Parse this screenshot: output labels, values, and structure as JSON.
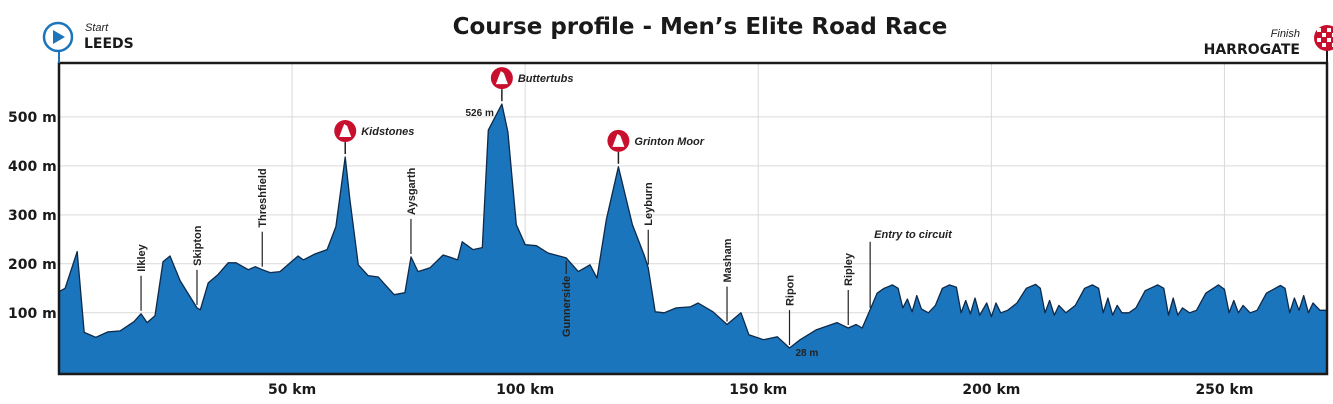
{
  "header": {
    "title": "Course profile - Men’s Elite Road Race",
    "start_caption": "Start",
    "start_city": "LEEDS",
    "finish_caption": "Finish",
    "finish_city": "HARROGATE"
  },
  "colors": {
    "profile_fill": "#1b75bc",
    "profile_outline": "#0d2a4a",
    "climb_marker": "#c8102e",
    "start_icon": "#1b75bc",
    "grid": "#d9d9d9"
  },
  "chart_data": {
    "type": "area",
    "title": "Course profile - Men’s Elite Road Race",
    "xlabel": "",
    "ylabel": "",
    "xlim": [
      0,
      272
    ],
    "ylim": [
      -25,
      610
    ],
    "grid": true,
    "x_ticks": [
      {
        "value": 50,
        "label": "50 km"
      },
      {
        "value": 100,
        "label": "100 km"
      },
      {
        "value": 150,
        "label": "150 km"
      },
      {
        "value": 200,
        "label": "200 km"
      },
      {
        "value": 250,
        "label": "250 km"
      }
    ],
    "y_ticks": [
      {
        "value": 100,
        "label": "100 m"
      },
      {
        "value": 200,
        "label": "200 m"
      },
      {
        "value": 300,
        "label": "300 m"
      },
      {
        "value": 400,
        "label": "400 m"
      },
      {
        "value": 500,
        "label": "500 m"
      }
    ],
    "profile": [
      [
        0,
        143
      ],
      [
        1.3,
        150
      ],
      [
        3.9,
        225
      ],
      [
        5.4,
        60
      ],
      [
        7.9,
        50
      ],
      [
        10.5,
        61
      ],
      [
        13.1,
        63
      ],
      [
        16.1,
        82
      ],
      [
        17.6,
        98
      ],
      [
        18.9,
        80
      ],
      [
        20.6,
        94
      ],
      [
        22.3,
        204
      ],
      [
        23.8,
        216
      ],
      [
        26,
        165
      ],
      [
        29.6,
        110
      ],
      [
        30.3,
        106
      ],
      [
        32,
        161
      ],
      [
        34.1,
        178
      ],
      [
        36.3,
        202
      ],
      [
        38,
        202
      ],
      [
        40.6,
        188
      ],
      [
        42.1,
        194
      ],
      [
        43.6,
        188
      ],
      [
        45.3,
        182
      ],
      [
        47.4,
        184
      ],
      [
        49.6,
        202
      ],
      [
        51.3,
        216
      ],
      [
        52.4,
        208
      ],
      [
        54.9,
        220
      ],
      [
        57.5,
        229
      ],
      [
        59.4,
        276
      ],
      [
        61.4,
        418
      ],
      [
        62.4,
        331
      ],
      [
        64.2,
        198
      ],
      [
        66.3,
        176
      ],
      [
        68.5,
        173
      ],
      [
        70,
        157
      ],
      [
        71.9,
        137
      ],
      [
        74.2,
        141
      ],
      [
        75.5,
        214
      ],
      [
        77,
        184
      ],
      [
        79.6,
        192
      ],
      [
        82.4,
        218
      ],
      [
        83.7,
        214
      ],
      [
        85.5,
        208
      ],
      [
        86.5,
        245
      ],
      [
        88.8,
        229
      ],
      [
        90.8,
        233
      ],
      [
        92.1,
        473
      ],
      [
        95,
        526
      ],
      [
        96.3,
        469
      ],
      [
        98.1,
        280
      ],
      [
        100,
        239
      ],
      [
        102.4,
        237
      ],
      [
        104.9,
        222
      ],
      [
        108.8,
        212
      ],
      [
        111.4,
        184
      ],
      [
        113.9,
        198
      ],
      [
        115.4,
        171
      ],
      [
        117.4,
        290
      ],
      [
        120,
        398
      ],
      [
        123,
        280
      ],
      [
        125.5,
        218
      ],
      [
        126.4,
        192
      ],
      [
        127.9,
        102
      ],
      [
        129.8,
        100
      ],
      [
        132.4,
        110
      ],
      [
        135.4,
        112
      ],
      [
        137.1,
        120
      ],
      [
        140.3,
        102
      ],
      [
        143.3,
        76
      ],
      [
        146.3,
        100
      ],
      [
        148,
        55
      ],
      [
        151.1,
        45
      ],
      [
        154.1,
        51
      ],
      [
        156.7,
        28
      ],
      [
        159,
        45
      ],
      [
        162.4,
        65
      ],
      [
        166.9,
        80
      ],
      [
        169.3,
        69
      ],
      [
        171,
        76
      ],
      [
        172.3,
        69
      ],
      [
        174,
        106
      ],
      [
        175.5,
        140
      ],
      [
        177,
        150
      ],
      [
        178.8,
        157
      ],
      [
        180,
        150
      ],
      [
        181,
        110
      ],
      [
        182,
        128
      ],
      [
        183,
        102
      ],
      [
        184,
        135
      ],
      [
        185,
        108
      ],
      [
        186.5,
        100
      ],
      [
        188,
        115
      ],
      [
        189.5,
        150
      ],
      [
        191,
        157
      ],
      [
        192.5,
        152
      ],
      [
        193.5,
        100
      ],
      [
        194.5,
        125
      ],
      [
        195.5,
        98
      ],
      [
        196.5,
        130
      ],
      [
        197.5,
        95
      ],
      [
        199,
        120
      ],
      [
        200,
        92
      ],
      [
        201,
        120
      ],
      [
        202,
        100
      ],
      [
        203.5,
        105
      ],
      [
        205.5,
        120
      ],
      [
        207.5,
        150
      ],
      [
        209.5,
        158
      ],
      [
        210.5,
        150
      ],
      [
        211.5,
        100
      ],
      [
        212.5,
        125
      ],
      [
        213.5,
        95
      ],
      [
        214.5,
        115
      ],
      [
        216,
        100
      ],
      [
        218,
        115
      ],
      [
        220,
        150
      ],
      [
        221.7,
        157
      ],
      [
        223,
        150
      ],
      [
        224,
        100
      ],
      [
        225,
        130
      ],
      [
        226,
        95
      ],
      [
        227,
        115
      ],
      [
        228,
        100
      ],
      [
        229.5,
        100
      ],
      [
        231,
        110
      ],
      [
        233,
        145
      ],
      [
        235.7,
        157
      ],
      [
        237,
        150
      ],
      [
        238,
        95
      ],
      [
        239,
        130
      ],
      [
        240,
        95
      ],
      [
        241,
        110
      ],
      [
        242.5,
        100
      ],
      [
        244,
        105
      ],
      [
        246,
        140
      ],
      [
        248.7,
        157
      ],
      [
        250,
        148
      ],
      [
        251,
        100
      ],
      [
        252,
        125
      ],
      [
        253,
        100
      ],
      [
        254,
        115
      ],
      [
        255.5,
        100
      ],
      [
        257,
        105
      ],
      [
        259,
        140
      ],
      [
        262,
        156
      ],
      [
        263,
        150
      ],
      [
        264,
        100
      ],
      [
        265,
        130
      ],
      [
        266,
        105
      ],
      [
        267,
        135
      ],
      [
        268,
        100
      ],
      [
        269,
        120
      ],
      [
        270.5,
        105
      ],
      [
        272,
        105
      ]
    ],
    "climbs": [
      {
        "name": "Kidstones",
        "km": 61.4,
        "elevation": 418
      },
      {
        "name": "Buttertubs",
        "km": 95,
        "elevation": 526,
        "elevation_label": "526 m"
      },
      {
        "name": "Grinton Moor",
        "km": 120,
        "elevation": 398
      }
    ],
    "towns": [
      {
        "name": "Ilkley",
        "km": 17.6,
        "elevation": 98,
        "side": "above"
      },
      {
        "name": "Skipton",
        "km": 29.6,
        "elevation": 110,
        "side": "above"
      },
      {
        "name": "Threshfield",
        "km": 43.6,
        "elevation": 188,
        "side": "above"
      },
      {
        "name": "Aysgarth",
        "km": 75.5,
        "elevation": 214,
        "side": "above"
      },
      {
        "name": "Gunnerside",
        "km": 108.8,
        "elevation": 212,
        "side": "below"
      },
      {
        "name": "Leyburn",
        "km": 126.4,
        "elevation": 192,
        "side": "above"
      },
      {
        "name": "Masham",
        "km": 143.3,
        "elevation": 76,
        "side": "above"
      },
      {
        "name": "Ripon",
        "km": 156.7,
        "elevation": 28,
        "side": "above",
        "elevation_label": "28 m"
      },
      {
        "name": "Ripley",
        "km": 169.3,
        "elevation": 69,
        "side": "above"
      }
    ],
    "annotations": [
      {
        "text": "Entry to circuit",
        "km": 174,
        "elevation": 106
      }
    ]
  }
}
